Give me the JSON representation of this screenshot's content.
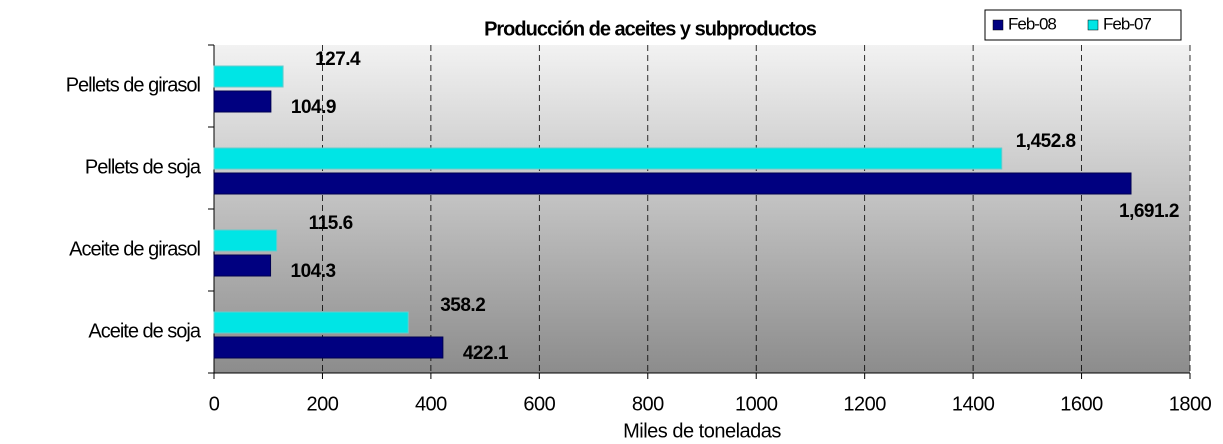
{
  "chart_data": {
    "type": "hbar",
    "title": "Producción de aceites y subproductos",
    "categories": [
      "Pellets de girasol",
      "Pellets de soja",
      "Aceite de girasol",
      "Aceite de soja"
    ],
    "series": [
      {
        "name": "Feb-08",
        "color": "#000080",
        "values": [
          104.9,
          1691.2,
          104.3,
          422.1
        ],
        "value_labels": [
          "104.9",
          "1,691.2",
          "104.3",
          "422.1"
        ]
      },
      {
        "name": "Feb-07",
        "color": "#00e5e5",
        "values": [
          127.4,
          1452.8,
          115.6,
          358.2
        ],
        "value_labels": [
          "127.4",
          "1,452.8",
          "115.6",
          "358.2"
        ]
      }
    ],
    "xlabel": "Miles de toneladas",
    "xlim": [
      0,
      1800
    ],
    "xticks": [
      0,
      200,
      400,
      600,
      800,
      1000,
      1200,
      1400,
      1600,
      1800
    ],
    "grid": true,
    "legend": "top-right"
  }
}
